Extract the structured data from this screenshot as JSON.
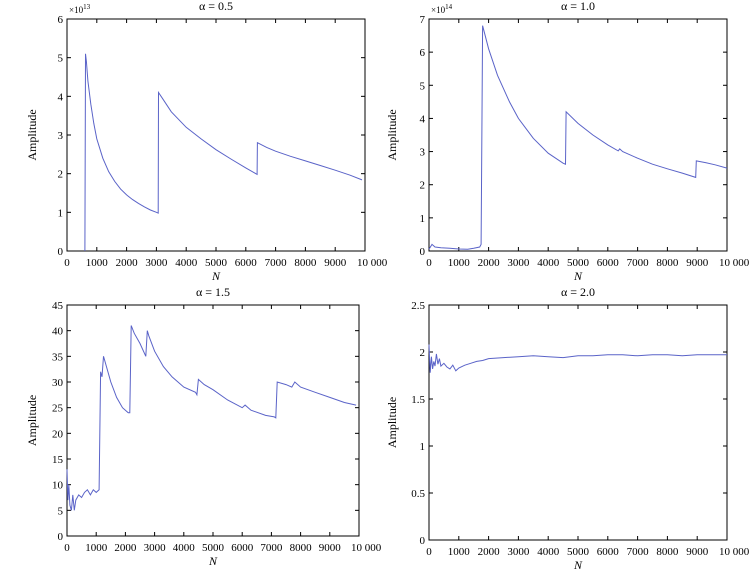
{
  "chart_data": [
    {
      "type": "line",
      "title": "α = 0.5",
      "xlabel": "N",
      "ylabel": "Amplitude",
      "multiplier": "×10",
      "multiplier_exp": "13",
      "xlim": [
        0,
        10000
      ],
      "ylim": [
        0,
        6
      ],
      "xticks": [
        0,
        1000,
        2000,
        3000,
        4000,
        5000,
        6000,
        7000,
        8000,
        9000,
        10000
      ],
      "xtick_labels": [
        "0",
        "1000",
        "2000",
        "3000",
        "4000",
        "5000",
        "6000",
        "7000",
        "8000",
        "9000",
        "10 000"
      ],
      "yticks": [
        0,
        1,
        2,
        3,
        4,
        5,
        6
      ],
      "ytick_labels": [
        "0",
        "1",
        "2",
        "3",
        "4",
        "5",
        "6"
      ],
      "color": "#5a63c8",
      "series": [
        {
          "x": [
            600,
            620,
            650,
            700,
            800,
            900,
            1000,
            1200,
            1400,
            1600,
            1800,
            2000,
            2200,
            2400,
            2600,
            2800,
            3000,
            3060,
            3070,
            3200,
            3500,
            4000,
            4500,
            5000,
            5500,
            6000,
            6380,
            6390,
            6700,
            7000,
            7500,
            8000,
            8500,
            9000,
            9500,
            9900
          ],
          "y": [
            0.0,
            5.1,
            4.9,
            4.4,
            3.8,
            3.3,
            2.9,
            2.4,
            2.05,
            1.8,
            1.6,
            1.45,
            1.33,
            1.23,
            1.14,
            1.06,
            1.0,
            0.98,
            4.1,
            3.95,
            3.6,
            3.2,
            2.9,
            2.62,
            2.38,
            2.15,
            1.98,
            2.8,
            2.68,
            2.58,
            2.45,
            2.33,
            2.21,
            2.09,
            1.96,
            1.84
          ]
        }
      ]
    },
    {
      "type": "line",
      "title": "α = 1.0",
      "xlabel": "N",
      "ylabel": "Amplitude",
      "multiplier": "×10",
      "multiplier_exp": "14",
      "xlim": [
        0,
        10000
      ],
      "ylim": [
        0,
        7
      ],
      "xticks": [
        0,
        1000,
        2000,
        3000,
        4000,
        5000,
        6000,
        7000,
        8000,
        9000,
        10000
      ],
      "xtick_labels": [
        "0",
        "1000",
        "2000",
        "3000",
        "4000",
        "5000",
        "6000",
        "7000",
        "8000",
        "9000",
        "10 000"
      ],
      "yticks": [
        0,
        1,
        2,
        3,
        4,
        5,
        6,
        7
      ],
      "ytick_labels": [
        "0",
        "1",
        "2",
        "3",
        "4",
        "5",
        "6",
        "7"
      ],
      "color": "#5a63c8",
      "series": [
        {
          "x": [
            0,
            100,
            200,
            400,
            700,
            1000,
            1300,
            1500,
            1700,
            1750,
            1780,
            1800,
            2000,
            2300,
            2700,
            3000,
            3500,
            4000,
            4500,
            4580,
            4600,
            5000,
            5500,
            6000,
            6350,
            6400,
            6500,
            7000,
            7500,
            8000,
            8500,
            8950,
            8970,
            9300,
            9600,
            10000
          ],
          "y": [
            0.05,
            0.2,
            0.12,
            0.1,
            0.08,
            0.06,
            0.05,
            0.08,
            0.12,
            0.2,
            4.1,
            6.8,
            6.1,
            5.3,
            4.5,
            4.0,
            3.4,
            2.95,
            2.65,
            2.62,
            4.2,
            3.85,
            3.5,
            3.2,
            3.02,
            3.08,
            3.0,
            2.8,
            2.62,
            2.48,
            2.35,
            2.22,
            2.72,
            2.66,
            2.6,
            2.5
          ]
        }
      ]
    },
    {
      "type": "line",
      "title": "α = 1.5",
      "xlabel": "N",
      "ylabel": "Amplitude",
      "xlim": [
        0,
        10000
      ],
      "ylim": [
        0,
        45
      ],
      "xticks": [
        0,
        1000,
        2000,
        3000,
        4000,
        5000,
        6000,
        7000,
        8000,
        9000,
        10000
      ],
      "xtick_labels": [
        "0",
        "1000",
        "2000",
        "3000",
        "4000",
        "5000",
        "6000",
        "7000",
        "8000",
        "9000",
        "10 000"
      ],
      "yticks": [
        0,
        5,
        10,
        15,
        20,
        25,
        30,
        35,
        40,
        45
      ],
      "ytick_labels": [
        "0",
        "5",
        "10",
        "15",
        "20",
        "25",
        "30",
        "35",
        "40",
        "45"
      ],
      "color": "#5a63c8",
      "series": [
        {
          "x": [
            0,
            30,
            60,
            100,
            150,
            200,
            250,
            300,
            400,
            500,
            600,
            700,
            800,
            900,
            1000,
            1100,
            1150,
            1200,
            1250,
            1300,
            1400,
            1500,
            1700,
            1900,
            2100,
            2150,
            2200,
            2300,
            2500,
            2700,
            2750,
            2800,
            3000,
            3300,
            3600,
            4000,
            4400,
            4450,
            4500,
            4700,
            5000,
            5500,
            6000,
            6100,
            6300,
            6800,
            7100,
            7150,
            7200,
            7500,
            7700,
            7800,
            8000,
            8500,
            9000,
            9500,
            9900
          ],
          "y": [
            13.0,
            7.0,
            10.0,
            6.0,
            5.0,
            8.0,
            5.0,
            7.0,
            8.0,
            7.5,
            8.5,
            9.0,
            8.0,
            9.0,
            8.5,
            9.0,
            32.0,
            31.0,
            35.0,
            34.0,
            32.0,
            30.0,
            27.0,
            25.0,
            24.0,
            24.0,
            41.0,
            39.5,
            37.5,
            35.0,
            40.0,
            39.0,
            36.0,
            33.0,
            31.0,
            29.0,
            28.0,
            27.5,
            30.5,
            29.5,
            28.5,
            26.5,
            25.0,
            25.5,
            24.5,
            23.5,
            23.2,
            23.0,
            30.0,
            29.5,
            29.0,
            30.0,
            29.0,
            28.0,
            27.0,
            26.0,
            25.5
          ]
        }
      ]
    },
    {
      "type": "line",
      "title": "α = 2.0",
      "xlabel": "N",
      "ylabel": "Amplitude",
      "xlim": [
        0,
        10000
      ],
      "ylim": [
        0,
        2.5
      ],
      "xticks": [
        0,
        1000,
        2000,
        3000,
        4000,
        5000,
        6000,
        7000,
        8000,
        9000,
        10000
      ],
      "xtick_labels": [
        "0",
        "1000",
        "2000",
        "3000",
        "4000",
        "5000",
        "6000",
        "7000",
        "8000",
        "9000",
        "10 000"
      ],
      "yticks": [
        0,
        0.5,
        1,
        1.5,
        2,
        2.5
      ],
      "ytick_labels": [
        "0",
        "0.5",
        "1",
        "1.5",
        "2",
        "2.5"
      ],
      "color": "#5a63c8",
      "series": [
        {
          "x": [
            0,
            40,
            80,
            120,
            160,
            200,
            250,
            300,
            350,
            400,
            500,
            600,
            700,
            800,
            900,
            1000,
            1200,
            1400,
            1600,
            1800,
            2000,
            2500,
            3000,
            3500,
            4000,
            4500,
            5000,
            5500,
            6000,
            6500,
            7000,
            7500,
            8000,
            8500,
            9000,
            9500,
            10000
          ],
          "y": [
            2.08,
            1.78,
            1.95,
            1.82,
            1.9,
            1.85,
            1.98,
            1.87,
            1.93,
            1.85,
            1.88,
            1.84,
            1.82,
            1.86,
            1.8,
            1.83,
            1.86,
            1.88,
            1.9,
            1.91,
            1.93,
            1.94,
            1.95,
            1.96,
            1.95,
            1.94,
            1.96,
            1.96,
            1.97,
            1.97,
            1.96,
            1.97,
            1.97,
            1.96,
            1.97,
            1.97,
            1.97
          ]
        }
      ]
    }
  ]
}
